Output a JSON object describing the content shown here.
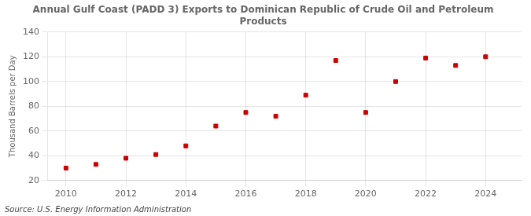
{
  "chart_data": {
    "type": "scatter",
    "title": "Annual Gulf Coast (PADD 3) Exports to Dominican Republic of Crude Oil and Petroleum\nProducts",
    "ylabel": "Thousand Barrels per Day",
    "source": "Source: U.S. Energy Information Administration",
    "color": "#cc0000",
    "marker": "square",
    "x": [
      2010,
      2011,
      2012,
      2013,
      2014,
      2015,
      2016,
      2017,
      2018,
      2019,
      2020,
      2021,
      2022,
      2023,
      2024
    ],
    "values": [
      30,
      33,
      38,
      41,
      48,
      64,
      75,
      72,
      89,
      117,
      75,
      100,
      119,
      113,
      120
    ],
    "xlim": [
      2009.4,
      2025.2
    ],
    "xticks": [
      2010,
      2012,
      2014,
      2016,
      2018,
      2020,
      2022,
      2024
    ],
    "ylim": [
      20,
      140
    ],
    "yticks": [
      20,
      40,
      60,
      80,
      100,
      120,
      140
    ],
    "grid": true
  }
}
